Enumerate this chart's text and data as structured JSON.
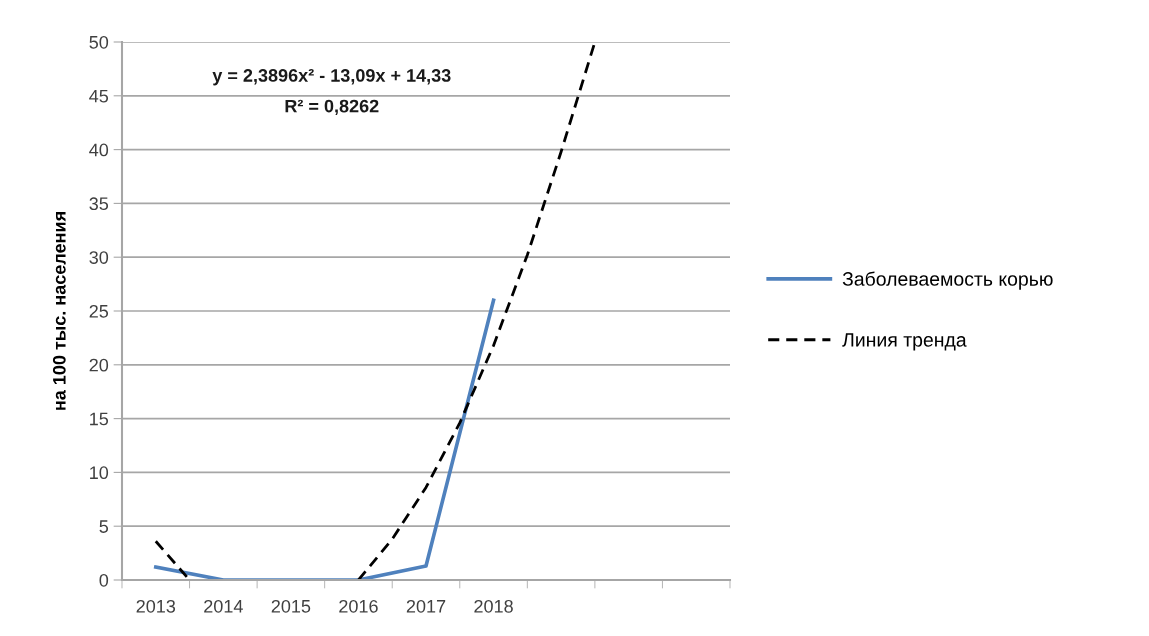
{
  "chart_data": {
    "type": "line",
    "ylabel": "на 100 тыс. населения",
    "annotations": [
      "y = 2,3896x² - 13,09x + 14,33",
      "R² = 0,8262"
    ],
    "x": [
      2013,
      2014,
      2015,
      2016,
      2017,
      2018
    ],
    "series": [
      {
        "name": "Заболеваемость корью",
        "color": "#4f81bd",
        "values": [
          1.2,
          0,
          0,
          0,
          1.3,
          26
        ],
        "line_style": "solid"
      },
      {
        "name": "Линия тренда",
        "color": "#000000",
        "x": [
          2013,
          2013.5,
          null,
          2016,
          2016.5,
          2017,
          2017.5,
          2018,
          2018.5,
          2019,
          2019.5
        ],
        "values": [
          3.6,
          0,
          null,
          0,
          3.8,
          8.6,
          14.6,
          21.8,
          30.2,
          39.8,
          50
        ],
        "line_style": "dashed"
      }
    ],
    "xlim": [
      2012.5,
      2021.5
    ],
    "xticks": [
      {
        "value": 2012.5,
        "label": null
      },
      {
        "value": 2013,
        "label": "2013"
      },
      {
        "value": 2013.5,
        "label": null
      },
      {
        "value": 2014,
        "label": "2014"
      },
      {
        "value": 2014.5,
        "label": null
      },
      {
        "value": 2015,
        "label": "2015"
      },
      {
        "value": 2015.5,
        "label": null
      },
      {
        "value": 2016,
        "label": "2016"
      },
      {
        "value": 2016.5,
        "label": null
      },
      {
        "value": 2017,
        "label": "2017"
      },
      {
        "value": 2017.5,
        "label": null
      },
      {
        "value": 2018,
        "label": "2018"
      },
      {
        "value": 2018.5,
        "label": null
      },
      {
        "value": 2019.5,
        "label": null
      },
      {
        "value": 2020.5,
        "label": null
      },
      {
        "value": 2021.5,
        "label": null
      }
    ],
    "ylim": [
      0,
      50
    ],
    "yticks": [
      0,
      5,
      10,
      15,
      20,
      25,
      30,
      35,
      40,
      45,
      50
    ],
    "grid": "y",
    "legend": "right",
    "marker": "none"
  }
}
